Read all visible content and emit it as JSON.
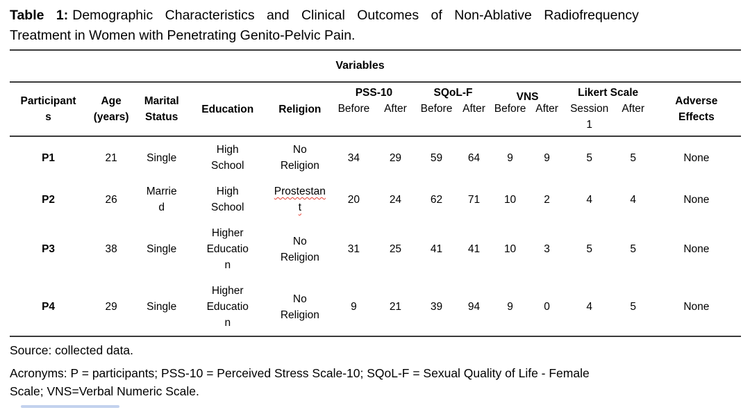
{
  "caption": {
    "label": "Table 1:",
    "line1": "Demographic Characteristics and Clinical Outcomes of Non-Ablative Radiofrequency",
    "line2": "Treatment in Women with Penetrating Genito-Pelvic Pain."
  },
  "table": {
    "variables_label": "Variables",
    "headers": {
      "participants": "Participant\ns",
      "age": "Age\n(years)",
      "marital_status": "Marital\nStatus",
      "education": "Education",
      "religion": "Religion",
      "adverse_effects": "Adverse\nEffects"
    },
    "groups": [
      {
        "label": "PSS-10",
        "subs": [
          "Before",
          "After"
        ]
      },
      {
        "label": "SQoL-F",
        "subs": [
          "Before",
          "After"
        ]
      },
      {
        "label": "VNS",
        "subs": [
          "Before",
          "After"
        ]
      },
      {
        "label": "Likert Scale",
        "subs": [
          "Session\n1",
          "After"
        ]
      }
    ],
    "rows": [
      {
        "participant": "P1",
        "age": "21",
        "marital_status": "Single",
        "education": "High\nSchool",
        "religion": "No\nReligion",
        "religion_misspelled": false,
        "pss_before": "34",
        "pss_after": "29",
        "sqol_before": "59",
        "sqol_after": "64",
        "vns_before": "9",
        "vns_after": "9",
        "likert_session1": "5",
        "likert_after": "5",
        "adverse_effects": "None"
      },
      {
        "participant": "P2",
        "age": "26",
        "marital_status": "Marrie\nd",
        "education": "High\nSchool",
        "religion": "Prostestan\nt",
        "religion_misspelled": true,
        "pss_before": "20",
        "pss_after": "24",
        "sqol_before": "62",
        "sqol_after": "71",
        "vns_before": "10",
        "vns_after": "2",
        "likert_session1": "4",
        "likert_after": "4",
        "adverse_effects": "None"
      },
      {
        "participant": "P3",
        "age": "38",
        "marital_status": "Single",
        "education": "Higher\nEducatio\nn",
        "religion": "No\nReligion",
        "religion_misspelled": false,
        "pss_before": "31",
        "pss_after": "25",
        "sqol_before": "41",
        "sqol_after": "41",
        "vns_before": "10",
        "vns_after": "3",
        "likert_session1": "5",
        "likert_after": "5",
        "adverse_effects": "None"
      },
      {
        "participant": "P4",
        "age": "29",
        "marital_status": "Single",
        "education": "Higher\nEducatio\nn",
        "religion": "No\nReligion",
        "religion_misspelled": false,
        "pss_before": "9",
        "pss_after": "21",
        "sqol_before": "39",
        "sqol_after": "94",
        "vns_before": "9",
        "vns_after": "0",
        "likert_session1": "4",
        "likert_after": "5",
        "adverse_effects": "None"
      }
    ]
  },
  "footer": {
    "source": "Source: collected data.",
    "acronyms": "Acronyms: P = participants; PSS-10 = Perceived Stress Scale-10; SQoL-F = Sexual Quality of Life - Female\nScale; VNS=Verbal Numeric Scale."
  },
  "colors": {
    "rule": "#3a3a3a",
    "squiggle_red": "#e43d30",
    "artifact_blue": "#7b9bd9",
    "text": "#000000",
    "background": "#ffffff"
  }
}
